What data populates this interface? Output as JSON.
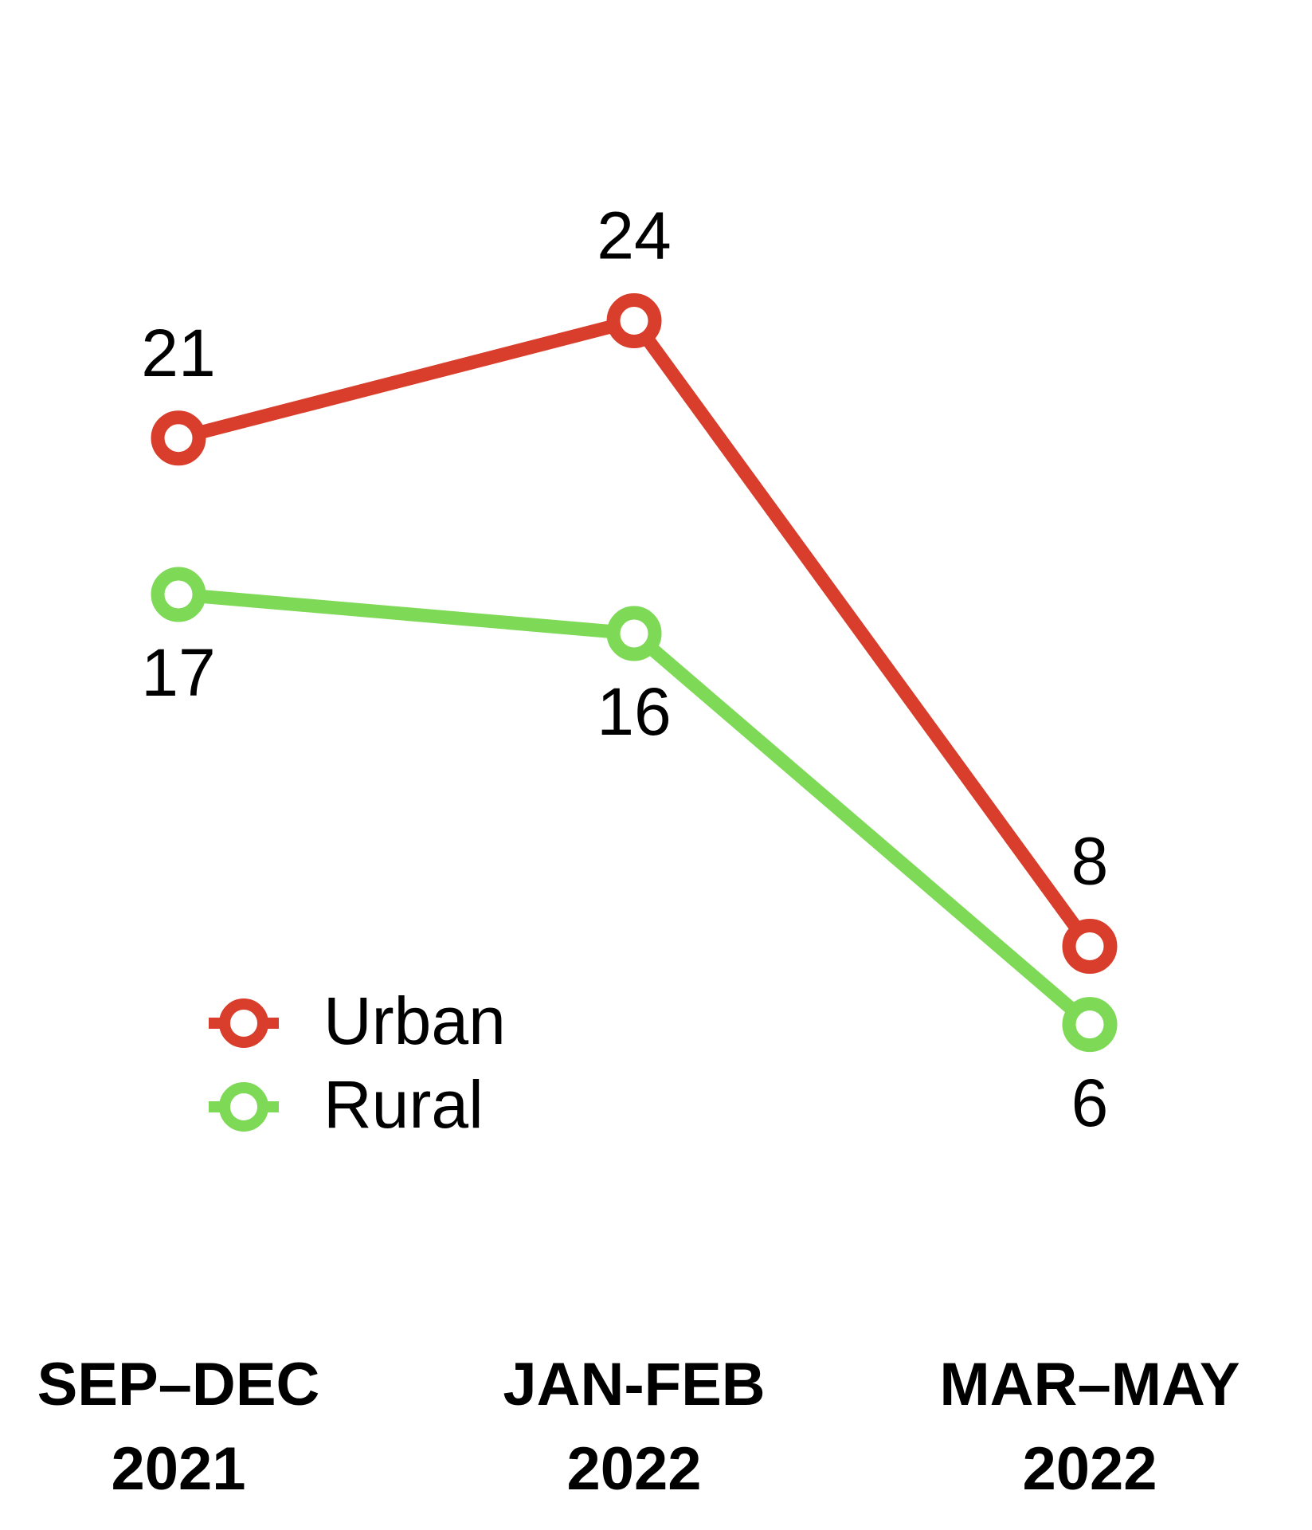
{
  "chart_data": {
    "type": "line",
    "categories": [
      "SEP–DEC\n2021",
      "JAN-FEB\n2022",
      "MAR–MAY\n2022"
    ],
    "series": [
      {
        "name": "Urban",
        "color": "#d83e2b",
        "values": [
          21,
          24,
          8
        ]
      },
      {
        "name": "Rural",
        "color": "#7ed957",
        "values": [
          17,
          16,
          6
        ]
      }
    ],
    "ylim": [
      0,
      32
    ]
  }
}
